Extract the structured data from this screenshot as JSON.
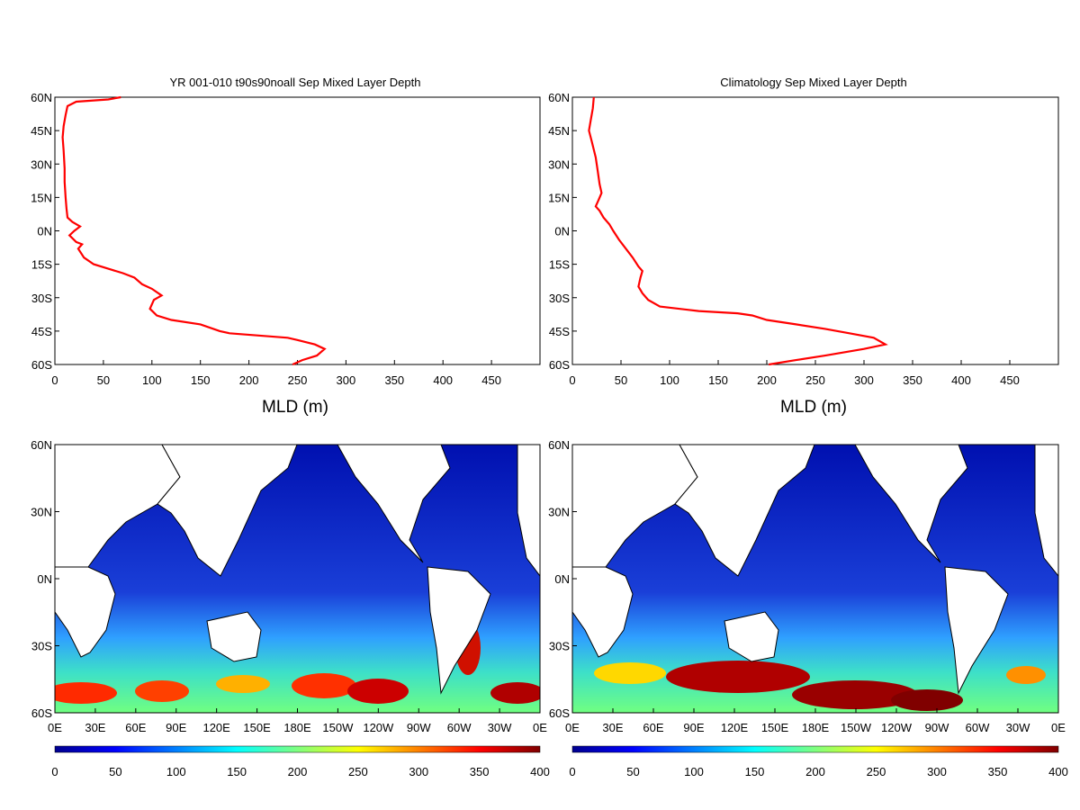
{
  "chart_data": [
    {
      "type": "line",
      "title": "YR 001-010 t90s90noall Sep Mixed Layer Depth",
      "xlabel": "MLD (m)",
      "ylabel": "",
      "xlim": [
        0,
        500
      ],
      "ylim": [
        -60,
        60
      ],
      "x_ticks": [
        0,
        50,
        100,
        150,
        200,
        250,
        300,
        350,
        400,
        450
      ],
      "y_ticks": [
        60,
        45,
        30,
        15,
        0,
        -15,
        -30,
        -45,
        -60
      ],
      "y_tick_labels": [
        "60N",
        "45N",
        "30N",
        "15N",
        "0N",
        "15S",
        "30S",
        "45S",
        "60S"
      ],
      "grid": false,
      "line_color": "#ff0000",
      "series": [
        {
          "name": "",
          "points": [
            [
              68,
              60
            ],
            [
              55,
              59
            ],
            [
              22,
              58
            ],
            [
              13,
              56
            ],
            [
              11,
              52
            ],
            [
              9,
              47
            ],
            [
              8,
              42
            ],
            [
              9,
              36
            ],
            [
              10,
              28
            ],
            [
              10,
              22
            ],
            [
              11,
              15
            ],
            [
              12,
              10
            ],
            [
              13,
              6
            ],
            [
              18,
              4
            ],
            [
              26,
              2
            ],
            [
              20,
              0
            ],
            [
              15,
              -2
            ],
            [
              22,
              -5
            ],
            [
              28,
              -6
            ],
            [
              24,
              -8
            ],
            [
              30,
              -12
            ],
            [
              40,
              -15
            ],
            [
              55,
              -17
            ],
            [
              70,
              -19
            ],
            [
              82,
              -21
            ],
            [
              90,
              -24
            ],
            [
              100,
              -26
            ],
            [
              110,
              -29
            ],
            [
              102,
              -31
            ],
            [
              98,
              -35
            ],
            [
              105,
              -38
            ],
            [
              120,
              -40
            ],
            [
              150,
              -42
            ],
            [
              170,
              -45
            ],
            [
              180,
              -46
            ],
            [
              240,
              -48
            ],
            [
              250,
              -49
            ],
            [
              268,
              -51
            ],
            [
              278,
              -53
            ],
            [
              270,
              -56
            ],
            [
              255,
              -58
            ],
            [
              245,
              -60
            ]
          ]
        }
      ]
    },
    {
      "type": "line",
      "title": "Climatology Sep Mixed Layer Depth",
      "xlabel": "MLD (m)",
      "ylabel": "",
      "xlim": [
        0,
        500
      ],
      "ylim": [
        -60,
        60
      ],
      "x_ticks": [
        0,
        50,
        100,
        150,
        200,
        250,
        300,
        350,
        400,
        450
      ],
      "y_ticks": [
        60,
        45,
        30,
        15,
        0,
        -15,
        -30,
        -45,
        -60
      ],
      "y_tick_labels": [
        "60N",
        "45N",
        "30N",
        "15N",
        "0N",
        "15S",
        "30S",
        "45S",
        "60S"
      ],
      "grid": false,
      "line_color": "#ff0000",
      "series": [
        {
          "name": "",
          "points": [
            [
              22,
              60
            ],
            [
              21,
              55
            ],
            [
              19,
              50
            ],
            [
              17,
              45
            ],
            [
              20,
              40
            ],
            [
              24,
              33
            ],
            [
              26,
              27
            ],
            [
              28,
              21
            ],
            [
              30,
              17
            ],
            [
              27,
              14
            ],
            [
              24,
              11
            ],
            [
              28,
              9
            ],
            [
              32,
              6
            ],
            [
              38,
              3
            ],
            [
              42,
              0
            ],
            [
              48,
              -4
            ],
            [
              55,
              -8
            ],
            [
              62,
              -12
            ],
            [
              68,
              -16
            ],
            [
              72,
              -18
            ],
            [
              70,
              -21
            ],
            [
              68,
              -25
            ],
            [
              72,
              -28
            ],
            [
              78,
              -31
            ],
            [
              90,
              -34
            ],
            [
              130,
              -36
            ],
            [
              170,
              -37
            ],
            [
              185,
              -38
            ],
            [
              200,
              -40
            ],
            [
              230,
              -42
            ],
            [
              260,
              -44
            ],
            [
              285,
              -46
            ],
            [
              310,
              -48
            ],
            [
              322,
              -51
            ],
            [
              300,
              -53
            ],
            [
              260,
              -56
            ],
            [
              230,
              -58
            ],
            [
              202,
              -60
            ]
          ]
        }
      ]
    },
    {
      "type": "heatmap",
      "title": "",
      "x_tick_labels": [
        "0E",
        "30E",
        "60E",
        "90E",
        "120E",
        "150E",
        "180E",
        "150W",
        "120W",
        "90W",
        "60W",
        "30W",
        "0E"
      ],
      "y_tick_labels": [
        "60N",
        "30N",
        "0N",
        "30S",
        "60S"
      ],
      "colorbar": {
        "range": [
          0,
          400
        ],
        "ticks": [
          "0",
          "50",
          "100",
          "150",
          "200",
          "250",
          "300",
          "350",
          "400"
        ]
      }
    },
    {
      "type": "heatmap",
      "title": "",
      "x_tick_labels": [
        "0E",
        "30E",
        "60E",
        "90E",
        "120E",
        "150E",
        "180E",
        "150W",
        "120W",
        "90W",
        "60W",
        "30W",
        "0E"
      ],
      "y_tick_labels": [
        "60N",
        "30N",
        "0N",
        "30S",
        "60S"
      ],
      "colorbar": {
        "range": [
          0,
          400
        ],
        "ticks": [
          "0",
          "50",
          "100",
          "150",
          "200",
          "250",
          "300",
          "350",
          "400"
        ]
      }
    }
  ]
}
